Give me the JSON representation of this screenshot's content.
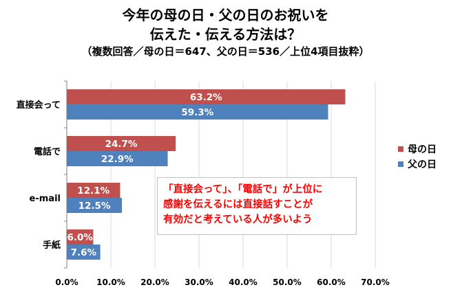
{
  "title": {
    "line1": "今年の母の日・父の日のお祝いを",
    "line2": "伝えた・伝える方法は？",
    "line3": "（複数回答／母の日＝647、父の日＝536／上位4項目抜粋）"
  },
  "callout": {
    "lines": [
      "「直接会って」、「電話で」が上位に",
      "感謝を伝えるには直接話すことが",
      "有効だと考えている人が多いよう"
    ]
  },
  "colors": {
    "mother": "#c0504d",
    "father": "#4f81bd",
    "grid": "#d9d9d9"
  },
  "chart_data": {
    "type": "bar",
    "orientation": "horizontal",
    "categories": [
      "直接会って",
      "電話で",
      "e-mail",
      "手紙"
    ],
    "series": [
      {
        "name": "母の日",
        "values": [
          63.2,
          24.7,
          12.1,
          6.0
        ],
        "labels": [
          "63.2%",
          "24.7%",
          "12.1%",
          "6.0%"
        ]
      },
      {
        "name": "父の日",
        "values": [
          59.3,
          22.9,
          12.5,
          7.6
        ],
        "labels": [
          "59.3%",
          "22.9%",
          "12.5%",
          "7.6%"
        ]
      }
    ],
    "xlim": [
      0,
      70
    ],
    "xticks": [
      "0.0%",
      "10.0%",
      "20.0%",
      "30.0%",
      "40.0%",
      "50.0%",
      "60.0%",
      "70.0%"
    ],
    "grid": true,
    "legend": "right"
  }
}
